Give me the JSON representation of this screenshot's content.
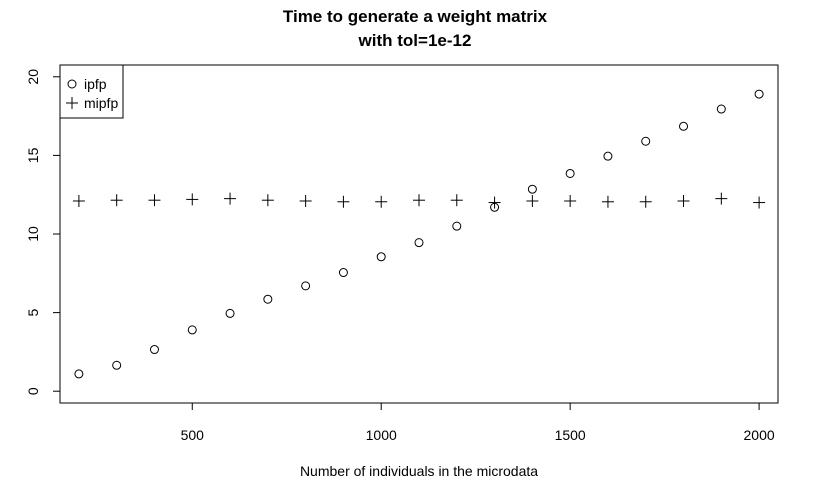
{
  "chart_data": {
    "type": "scatter",
    "title_line1": "Time to generate a weight matrix",
    "title_line2": "with tol=1e-12",
    "xlabel": "Number of individuals in the microdata",
    "ylabel": "",
    "xlim": [
      150,
      2050
    ],
    "ylim": [
      -0.75,
      20.75
    ],
    "x_ticks": [
      500,
      1000,
      1500,
      2000
    ],
    "y_ticks": [
      0,
      5,
      10,
      15,
      20
    ],
    "grid": false,
    "legend_position": "top-left",
    "series": [
      {
        "name": "ipfp",
        "marker": "circle",
        "x": [
          200,
          300,
          400,
          500,
          600,
          700,
          800,
          900,
          1000,
          1100,
          1200,
          1300,
          1400,
          1500,
          1600,
          1700,
          1800,
          1900,
          2000
        ],
        "y": [
          1.1,
          1.65,
          2.65,
          3.9,
          4.95,
          5.85,
          6.7,
          7.55,
          8.55,
          9.45,
          10.5,
          11.7,
          12.85,
          13.85,
          14.95,
          15.9,
          16.85,
          17.95,
          18.9
        ]
      },
      {
        "name": "mipfp",
        "marker": "plus",
        "x": [
          200,
          300,
          400,
          500,
          600,
          700,
          800,
          900,
          1000,
          1100,
          1200,
          1300,
          1400,
          1500,
          1600,
          1700,
          1800,
          1900,
          2000
        ],
        "y": [
          12.1,
          12.15,
          12.15,
          12.2,
          12.25,
          12.15,
          12.1,
          12.05,
          12.05,
          12.15,
          12.15,
          12.0,
          12.1,
          12.1,
          12.05,
          12.05,
          12.1,
          12.25,
          12.0
        ]
      }
    ]
  }
}
